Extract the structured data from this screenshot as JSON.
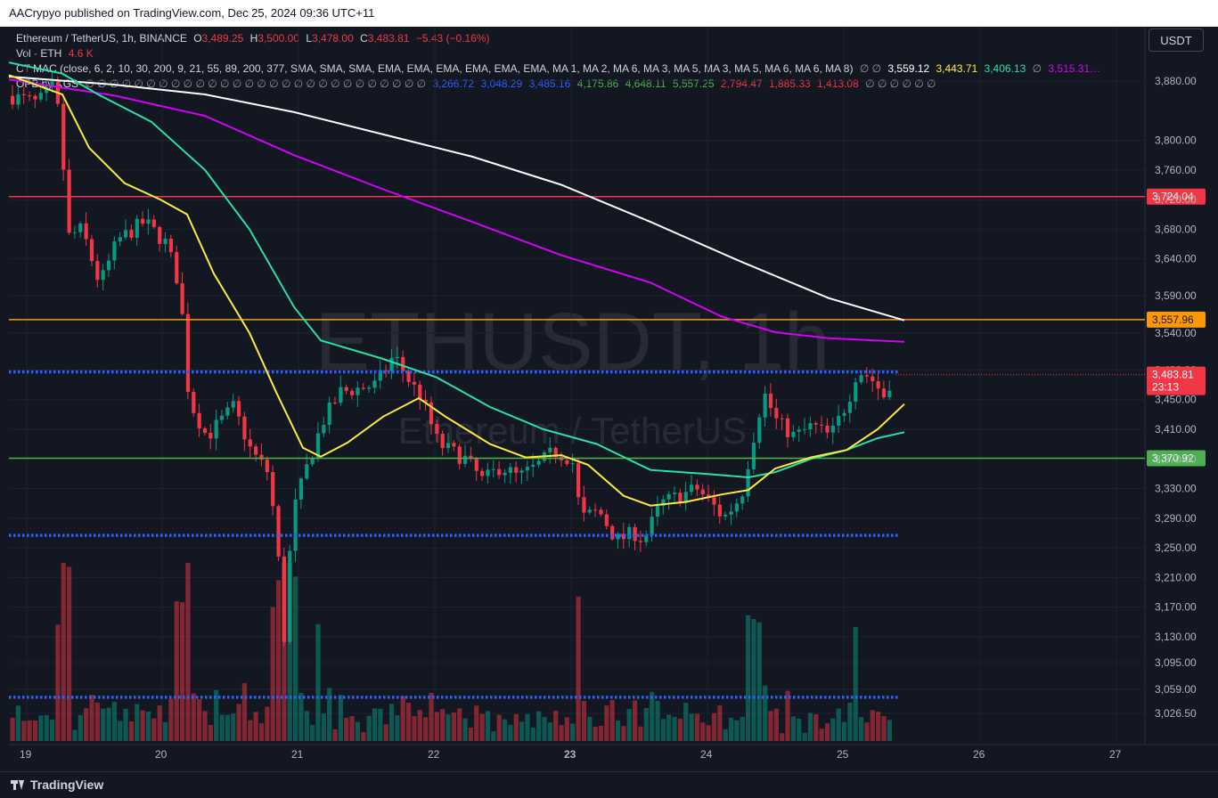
{
  "header": {
    "published": "AACrypyo published on TradingView.com, Dec 25, 2024 09:36 UTC+11"
  },
  "footer": {
    "brand": "TradingView"
  },
  "currency_button": "USDT",
  "watermark": {
    "symbol": "ETHUSDT, 1h",
    "name": "Ethereum / TetherUS"
  },
  "legend": {
    "symbol_line": "Ethereum / TetherUS, 1h, BINANCE",
    "open_label": "O",
    "open": "3,489.25",
    "high_label": "H",
    "high": "3,500.00",
    "low_label": "L",
    "low": "3,478.00",
    "close_label": "C",
    "close": "3,483.81",
    "change": "−5.43 (−0.16%)",
    "vol_label": "Vol · ETH",
    "vol_value": "4.6 K",
    "ctmac_label": "CT MAC (close, 6, 2, 10, 30, 200, 9, 21, 55, 89, 200, 377, SMA, SMA, SMA, EMA, EMA, EMA, EMA, EMA, EMA, MA 1, MA 2, MA 6, MA 3, MA 5, MA 3, MA 5, MA 6, MA 6, MA 8)",
    "ctmac_dots": "∅ ∅",
    "ctmac_values": [
      "3,559.12",
      "3,443.71",
      "3,406.13"
    ],
    "ctmac_dot2": "∅",
    "ctmac_last": "3,515.31…",
    "opb_label": "OPB by KGS",
    "opb_dots": "∅ ∅ ∅ ∅ ∅ ∅ ∅ ∅ ∅ ∅ ∅ ∅ ∅ ∅ ∅ ∅ ∅ ∅ ∅ ∅ ∅ ∅ ∅ ∅ ∅ ∅ ∅ ∅",
    "opb_values": [
      "3,266.72",
      "3,048.29",
      "3,485.16",
      "4,175.86",
      "4,648.11",
      "5,557.25",
      "2,794.47",
      "1,885.33",
      "1,413.08"
    ],
    "opb_trail": "∅ ∅ ∅ ∅ ∅ ∅"
  },
  "colors": {
    "bg": "#131722",
    "up": "#089981",
    "down": "#f23645",
    "ma_white": "#ffffff",
    "ma_yellow": "#ffeb3b",
    "ma_teal": "#26e2a3",
    "ma_magenta": "#d500f9",
    "line_red": "#f23645",
    "line_orange": "#ff9800",
    "line_green": "#4caf50",
    "dots_blue": "#2962ff"
  },
  "chart_data": {
    "type": "candlestick",
    "interval": "1h",
    "y_axis": {
      "ticks": [
        3880,
        3800,
        3760,
        3720,
        3680,
        3640,
        3590,
        3540,
        3490,
        3450,
        3410,
        3370,
        3330,
        3290,
        3250,
        3210,
        3170,
        3130,
        3095,
        3059,
        3026.5
      ],
      "tick_labels": [
        "3,880.00",
        "3,800.00",
        "3,760.00",
        "3,720.00",
        "3,680.00",
        "3,640.00",
        "3,590.00",
        "3,540.00",
        "3,490.00",
        "3,450.00",
        "3,410.00",
        "3,370.00",
        "3,330.00",
        "3,290.00",
        "3,250.00",
        "3,210.00",
        "3,170.00",
        "3,130.00",
        "3,095.00",
        "3,059.00",
        "3,026.50"
      ],
      "ylim": [
        3010,
        3915
      ]
    },
    "x_axis": {
      "tick_labels": [
        "19",
        "20",
        "21",
        "22",
        "23",
        "24",
        "25",
        "26",
        "27"
      ],
      "bold_index": 4
    },
    "horizontal_lines": [
      {
        "price": 3724.04,
        "label": "3,724.04",
        "color": "#f23645"
      },
      {
        "price": 3557.96,
        "label": "3,557.96",
        "color": "#ff9800"
      },
      {
        "price": 3370.92,
        "label": "3,370.92",
        "color": "#4caf50"
      }
    ],
    "dotted_lines": [
      3487.5,
      3266.7,
      3048.3
    ],
    "current_price": {
      "label": "3,483.81",
      "countdown": "23:13",
      "price": 3483.81
    },
    "ma_series": [
      {
        "color": "#ffffff",
        "points": [
          [
            0,
            3886
          ],
          [
            120,
            3875
          ],
          [
            220,
            3862
          ],
          [
            320,
            3838
          ],
          [
            420,
            3808
          ],
          [
            520,
            3778
          ],
          [
            620,
            3740
          ],
          [
            720,
            3690
          ],
          [
            820,
            3637
          ],
          [
            920,
            3587
          ],
          [
            1005,
            3557
          ]
        ]
      },
      {
        "color": "#d500f9",
        "points": [
          [
            0,
            3882
          ],
          [
            120,
            3860
          ],
          [
            220,
            3833
          ],
          [
            320,
            3780
          ],
          [
            420,
            3734
          ],
          [
            520,
            3690
          ],
          [
            620,
            3645
          ],
          [
            720,
            3608
          ],
          [
            800,
            3562
          ],
          [
            860,
            3541
          ],
          [
            920,
            3533
          ],
          [
            1005,
            3528
          ]
        ]
      },
      {
        "color": "#26e2a3",
        "points": [
          [
            0,
            3905
          ],
          [
            60,
            3890
          ],
          [
            100,
            3862
          ],
          [
            160,
            3825
          ],
          [
            220,
            3760
          ],
          [
            270,
            3680
          ],
          [
            320,
            3575
          ],
          [
            350,
            3530
          ],
          [
            420,
            3505
          ],
          [
            480,
            3480
          ],
          [
            540,
            3440
          ],
          [
            600,
            3410
          ],
          [
            660,
            3390
          ],
          [
            720,
            3355
          ],
          [
            780,
            3350
          ],
          [
            830,
            3345
          ],
          [
            860,
            3352
          ],
          [
            900,
            3370
          ],
          [
            940,
            3382
          ],
          [
            975,
            3398
          ],
          [
            1005,
            3406
          ]
        ]
      },
      {
        "color": "#ffeb3b",
        "points": [
          [
            0,
            3888
          ],
          [
            60,
            3862
          ],
          [
            90,
            3790
          ],
          [
            130,
            3742
          ],
          [
            170,
            3720
          ],
          [
            200,
            3700
          ],
          [
            230,
            3620
          ],
          [
            270,
            3540
          ],
          [
            300,
            3460
          ],
          [
            330,
            3385
          ],
          [
            350,
            3373
          ],
          [
            380,
            3392
          ],
          [
            420,
            3427
          ],
          [
            460,
            3452
          ],
          [
            490,
            3427
          ],
          [
            540,
            3390
          ],
          [
            580,
            3372
          ],
          [
            620,
            3375
          ],
          [
            650,
            3362
          ],
          [
            690,
            3320
          ],
          [
            720,
            3307
          ],
          [
            760,
            3312
          ],
          [
            800,
            3322
          ],
          [
            830,
            3328
          ],
          [
            860,
            3357
          ],
          [
            900,
            3372
          ],
          [
            940,
            3382
          ],
          [
            975,
            3410
          ],
          [
            1005,
            3444
          ]
        ]
      }
    ],
    "candles": []
  }
}
